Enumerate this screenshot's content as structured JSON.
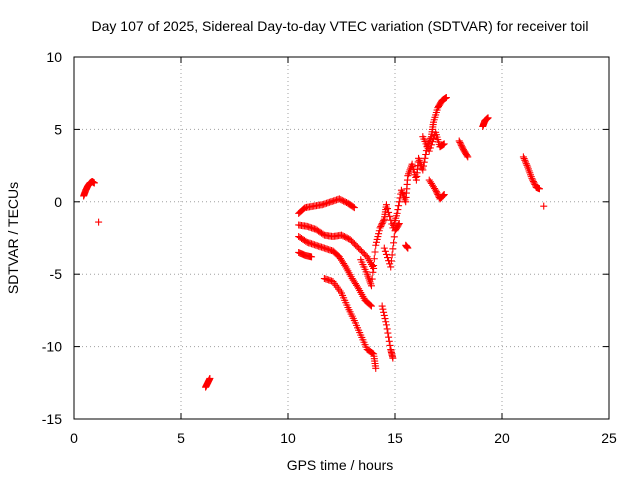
{
  "chart_data": {
    "type": "scatter",
    "title": "Day 107 of 2025, Sidereal Day-to-day VTEC variation (SDTVAR) for receiver toil",
    "xlabel": "GPS time / hours",
    "ylabel": "SDTVAR / TECUs",
    "xlim": [
      0,
      25
    ],
    "ylim": [
      -15,
      10
    ],
    "x_ticks": [
      "0",
      "5",
      "10",
      "15",
      "20",
      "25"
    ],
    "y_ticks": [
      "-15",
      "-10",
      "-5",
      "0",
      "5",
      "10"
    ],
    "grid": true,
    "marker": "plus",
    "marker_color": "#ff0000",
    "segments": [
      {
        "name": "s1",
        "pts": [
          [
            0.45,
            0.4
          ],
          [
            0.55,
            0.8
          ],
          [
            0.65,
            1.1
          ],
          [
            0.75,
            1.3
          ],
          [
            0.85,
            1.4
          ],
          [
            0.95,
            1.3
          ]
        ]
      },
      {
        "name": "s2",
        "pts": [
          [
            1.15,
            -1.4
          ]
        ]
      },
      {
        "name": "s3",
        "pts": [
          [
            6.15,
            -12.8
          ],
          [
            6.25,
            -12.5
          ],
          [
            6.35,
            -12.2
          ]
        ]
      },
      {
        "name": "s4",
        "pts": [
          [
            10.5,
            -0.8
          ],
          [
            10.8,
            -0.4
          ],
          [
            11.2,
            -0.3
          ],
          [
            11.6,
            -0.2
          ],
          [
            12.0,
            0.0
          ],
          [
            12.4,
            0.2
          ],
          [
            12.8,
            -0.1
          ],
          [
            13.1,
            -0.4
          ]
        ]
      },
      {
        "name": "s5",
        "pts": [
          [
            10.5,
            -1.6
          ],
          [
            10.9,
            -1.7
          ],
          [
            11.3,
            -1.9
          ],
          [
            11.7,
            -2.3
          ],
          [
            12.1,
            -2.4
          ],
          [
            12.5,
            -2.3
          ],
          [
            12.9,
            -2.6
          ],
          [
            13.3,
            -3.2
          ],
          [
            13.7,
            -3.8
          ],
          [
            14.0,
            -4.6
          ]
        ]
      },
      {
        "name": "s6",
        "pts": [
          [
            10.5,
            -2.4
          ],
          [
            10.9,
            -2.8
          ],
          [
            11.3,
            -3.0
          ],
          [
            11.7,
            -3.2
          ],
          [
            12.1,
            -3.4
          ],
          [
            12.4,
            -3.8
          ],
          [
            12.7,
            -4.5
          ],
          [
            13.0,
            -5.3
          ],
          [
            13.3,
            -6.0
          ],
          [
            13.6,
            -6.8
          ],
          [
            13.9,
            -7.2
          ]
        ]
      },
      {
        "name": "s7",
        "pts": [
          [
            10.5,
            -3.5
          ],
          [
            10.8,
            -3.7
          ],
          [
            11.1,
            -3.8
          ]
        ]
      },
      {
        "name": "s8",
        "pts": [
          [
            11.7,
            -5.3
          ],
          [
            12.1,
            -5.5
          ],
          [
            12.5,
            -6.3
          ],
          [
            12.8,
            -7.3
          ],
          [
            13.1,
            -8.2
          ],
          [
            13.4,
            -9.2
          ],
          [
            13.7,
            -10.2
          ],
          [
            14.0,
            -10.5
          ],
          [
            14.1,
            -11.5
          ]
        ]
      },
      {
        "name": "s9",
        "pts": [
          [
            13.4,
            -4.0
          ],
          [
            13.7,
            -5.0
          ],
          [
            13.9,
            -5.8
          ],
          [
            14.1,
            -3.0
          ],
          [
            14.3,
            -1.8
          ],
          [
            14.5,
            -1.2
          ],
          [
            14.6,
            -0.2
          ],
          [
            14.9,
            -1.8
          ],
          [
            15.1,
            -0.8
          ],
          [
            15.3,
            0.8
          ],
          [
            15.5,
            0.0
          ],
          [
            15.6,
            1.8
          ],
          [
            15.8,
            2.6
          ],
          [
            16.0,
            1.5
          ],
          [
            16.1,
            3.0
          ],
          [
            16.3,
            2.2
          ],
          [
            16.5,
            3.8
          ],
          [
            16.7,
            4.5
          ],
          [
            16.8,
            5.5
          ],
          [
            17.0,
            6.5
          ],
          [
            17.2,
            7.0
          ],
          [
            17.4,
            7.2
          ]
        ]
      },
      {
        "name": "s10",
        "pts": [
          [
            14.4,
            -7.2
          ],
          [
            14.6,
            -8.5
          ],
          [
            14.8,
            -10.2
          ],
          [
            14.9,
            -10.8
          ]
        ]
      },
      {
        "name": "s11",
        "pts": [
          [
            14.5,
            -3.2
          ],
          [
            14.8,
            -4.5
          ],
          [
            15.0,
            -2.0
          ],
          [
            15.2,
            -1.5
          ]
        ]
      },
      {
        "name": "s12",
        "pts": [
          [
            15.5,
            -3.0
          ],
          [
            15.6,
            -3.2
          ]
        ]
      },
      {
        "name": "s13",
        "pts": [
          [
            16.6,
            1.5
          ],
          [
            16.9,
            0.8
          ],
          [
            17.1,
            0.2
          ],
          [
            17.3,
            0.5
          ]
        ]
      },
      {
        "name": "s14",
        "pts": [
          [
            16.3,
            4.5
          ],
          [
            16.6,
            3.5
          ],
          [
            16.9,
            4.8
          ],
          [
            17.1,
            3.8
          ],
          [
            17.3,
            4.0
          ]
        ]
      },
      {
        "name": "s15",
        "pts": [
          [
            18.0,
            4.2
          ],
          [
            18.2,
            3.6
          ],
          [
            18.4,
            3.1
          ]
        ]
      },
      {
        "name": "s16",
        "pts": [
          [
            19.1,
            5.2
          ],
          [
            19.2,
            5.6
          ],
          [
            19.35,
            5.8
          ]
        ]
      },
      {
        "name": "s17",
        "pts": [
          [
            21.0,
            3.1
          ],
          [
            21.2,
            2.4
          ],
          [
            21.4,
            1.6
          ],
          [
            21.6,
            1.0
          ],
          [
            21.75,
            0.9
          ]
        ]
      },
      {
        "name": "s18",
        "pts": [
          [
            21.95,
            -0.3
          ]
        ]
      }
    ]
  }
}
